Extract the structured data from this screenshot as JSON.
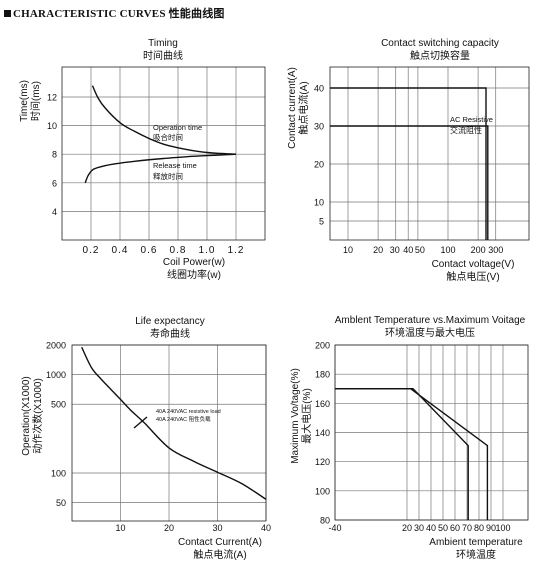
{
  "header": {
    "text": "CHARACTERISTIC CURVES",
    "cjk": "性能曲线图"
  },
  "chart_data": [
    {
      "type": "line",
      "title": "Timing",
      "title_cn": "时间曲线",
      "xlabel": "Coil Power(w)",
      "xlabel_cn": "线圈功率(w)",
      "ylabel": "Time(ms)",
      "ylabel_cn": "时间(ms)",
      "xlim": [
        0,
        1.4
      ],
      "ylim": [
        2,
        14
      ],
      "xticks": [
        0.2,
        0.4,
        0.6,
        0.8,
        1.0,
        1.2
      ],
      "xtick_labels": [
        "0.2",
        "0.4",
        "0.6",
        "0.8",
        "1.0",
        "1.2"
      ],
      "yticks": [
        4,
        6,
        8,
        10,
        12
      ],
      "grid": true,
      "series": [
        {
          "name": "Operation time",
          "name_cn": "吸合时间",
          "x": [
            0.21,
            0.25,
            0.3,
            0.4,
            0.5,
            0.6,
            0.7,
            0.8,
            0.9,
            1.0,
            1.1,
            1.2
          ],
          "y": [
            12.8,
            11.9,
            11.2,
            10.2,
            9.6,
            9.1,
            8.7,
            8.45,
            8.25,
            8.12,
            8.05,
            8.0
          ]
        },
        {
          "name": "Release time",
          "name_cn": "释放时间",
          "x": [
            0.16,
            0.18,
            0.21,
            0.26,
            0.35,
            0.5,
            0.7,
            0.9,
            1.1,
            1.2
          ],
          "y": [
            6.0,
            6.5,
            6.9,
            7.1,
            7.3,
            7.5,
            7.7,
            7.85,
            7.95,
            8.0
          ]
        }
      ]
    },
    {
      "type": "line",
      "title": "Contact switching capacity",
      "title_cn": "触点切换容量",
      "xlabel": "Contact voltage(V)",
      "xlabel_cn": "触点电压(V)",
      "ylabel": "Contact current(A)",
      "ylabel_cn": "触点电流(A)",
      "xscale": "log",
      "xticks": [
        10,
        20,
        30,
        40,
        50,
        100,
        200,
        300
      ],
      "xtick_labels": [
        "10",
        "20",
        "30",
        "40",
        "50",
        "100",
        "200",
        "300"
      ],
      "ylim": [
        0,
        45
      ],
      "yticks": [
        5,
        10,
        20,
        30,
        40
      ],
      "grid": true,
      "series": [
        {
          "name": "AC Resistive",
          "name_cn": "交流阻性",
          "x": [
            5,
            240,
            240
          ],
          "y": [
            40,
            40,
            0
          ]
        },
        {
          "x": [
            5,
            250,
            250
          ],
          "y": [
            30,
            30,
            0
          ]
        }
      ],
      "annotations": [
        "AC Resistive",
        "交流阻性"
      ]
    },
    {
      "type": "line",
      "title": "Life expectancy",
      "title_cn": "寿命曲线",
      "xlabel": "Contact Current(A)",
      "xlabel_cn": "触点电流(A)",
      "ylabel": "Operation(X1000)",
      "ylabel_cn": "动作次数(X1000)",
      "xlim": [
        0,
        40
      ],
      "xticks": [
        10,
        20,
        30,
        40
      ],
      "yticks": [
        50,
        100,
        500,
        1000,
        2000
      ],
      "grid": true,
      "series": [
        {
          "name": "40A 240VAC resistive load",
          "name_cn": "40A 240VAC 阻性负载",
          "x": [
            2,
            4,
            6,
            8,
            10,
            12,
            15,
            20,
            25,
            30,
            35,
            40
          ],
          "y": [
            1900,
            1180,
            900,
            710,
            560,
            440,
            320,
            180,
            132,
            102,
            78,
            54
          ]
        }
      ]
    },
    {
      "type": "line",
      "title": "Amblent Temperature vs.Maximum Voitage",
      "title_cn": "环境温度与最大电压",
      "xlabel": "Ambient temperature",
      "xlabel_cn": "环境温度",
      "ylabel": "Maximum Vo/tage(%)",
      "ylabel_cn": "最大电压(%)",
      "xlim": [
        -40,
        100
      ],
      "ylim": [
        80,
        200
      ],
      "xticks": [
        -40,
        20,
        30,
        40,
        50,
        60,
        70,
        80,
        90,
        100
      ],
      "xtick_labels": [
        "-40",
        "20",
        "30",
        "40",
        "50",
        "60",
        "70",
        "80",
        "90",
        "100"
      ],
      "yticks": [
        80,
        100,
        120,
        140,
        160,
        180,
        200
      ],
      "grid": true,
      "series": [
        {
          "x": [
            -40,
            23,
            87,
            87
          ],
          "y": [
            170,
            170,
            131,
            80
          ]
        },
        {
          "x": [
            -40,
            25,
            71,
            71
          ],
          "y": [
            170,
            170,
            131,
            80
          ]
        }
      ]
    }
  ]
}
